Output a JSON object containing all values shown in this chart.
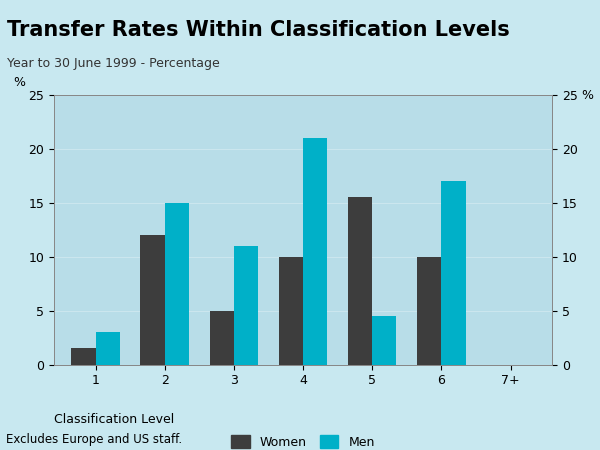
{
  "title": "Transfer Rates Within Classification Levels",
  "subtitle": "Year to 30 June 1999 - Percentage",
  "footnote": "Excludes Europe and US staff.",
  "xlabel": "Classification Level",
  "ylabel_left": "%",
  "ylabel_right": "%",
  "categories": [
    "1",
    "2",
    "3",
    "4",
    "5",
    "6",
    "7+"
  ],
  "women_values": [
    1.5,
    12,
    5,
    10,
    15.5,
    10,
    0
  ],
  "men_values": [
    3,
    15,
    11,
    21,
    4.5,
    17,
    0
  ],
  "ylim": [
    0,
    25
  ],
  "yticks": [
    0,
    5,
    10,
    15,
    20,
    25
  ],
  "color_women": "#3d3d3d",
  "color_men": "#00b0c8",
  "background_chart": "#b8dde8",
  "background_title": "#7ec8d8",
  "background_fig": "#c8e8f0",
  "bar_width": 0.35,
  "legend_women": "Women",
  "legend_men": "Men",
  "title_fontsize": 15,
  "subtitle_fontsize": 9,
  "tick_fontsize": 9,
  "label_fontsize": 9,
  "footnote_fontsize": 8.5
}
